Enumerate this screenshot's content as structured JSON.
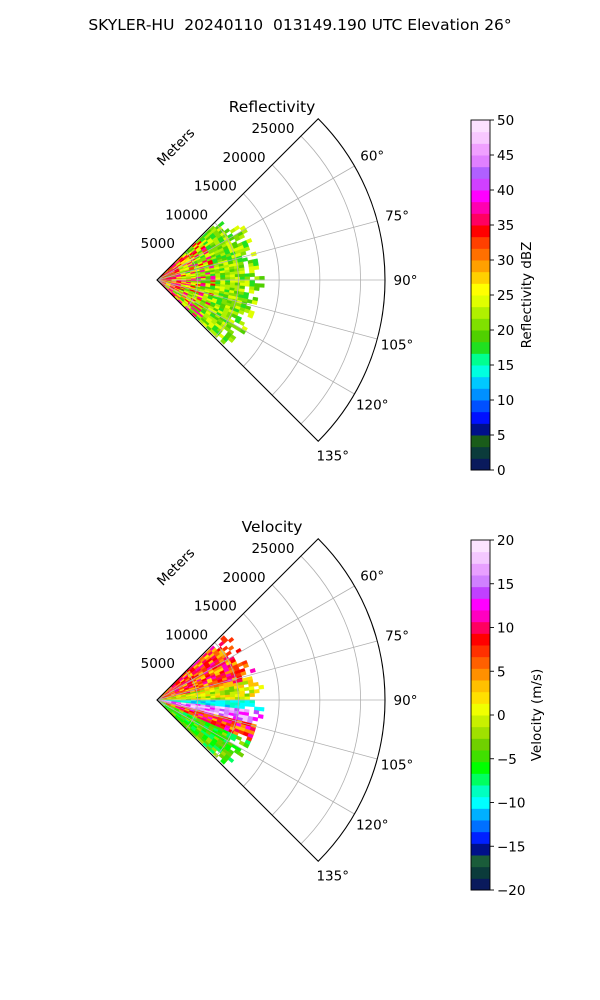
{
  "figure": {
    "title": "SKYLER-HU  20240110  013149.190 UTC Elevation 26°"
  },
  "chart_data": [
    {
      "type": "heatmap",
      "subtype": "polar-sector",
      "title": "Reflectivity",
      "radial_label": "Meters",
      "radial_ticks": [
        5000,
        10000,
        15000,
        20000,
        25000
      ],
      "radial_tick_labels": [
        "5000",
        "10000",
        "15000",
        "20000",
        "25000"
      ],
      "rlim": [
        0,
        28000
      ],
      "angle_ticks": [
        60,
        75,
        90,
        105,
        120,
        135
      ],
      "angle_tick_labels": [
        "60°",
        "75°",
        "90°",
        "105°",
        "120°",
        "135°"
      ],
      "angle_range_deg": [
        45,
        135
      ],
      "grid": true,
      "data_extent_m": 13500,
      "colorbar": {
        "label": "Reflectivity dBZ",
        "min": 0,
        "max": 50,
        "ticks": [
          0,
          5,
          10,
          15,
          20,
          25,
          30,
          35,
          40,
          45,
          50
        ],
        "tick_labels": [
          "0",
          "5",
          "10",
          "15",
          "20",
          "25",
          "30",
          "35",
          "40",
          "45",
          "50"
        ],
        "colors": [
          "#0a1a5c",
          "#0b3b3b",
          "#1a5c1a",
          "#00108a",
          "#0010ff",
          "#0050ff",
          "#0090ff",
          "#00c8ff",
          "#00ffe0",
          "#00ff90",
          "#20e020",
          "#50d000",
          "#80e000",
          "#b0f000",
          "#e0ff00",
          "#ffff00",
          "#ffd000",
          "#ffa000",
          "#ff7000",
          "#ff4000",
          "#ff0000",
          "#ff0060",
          "#ff00b0",
          "#ff00ff",
          "#d040ff",
          "#b060ff",
          "#e080ff",
          "#f0a0ff",
          "#f8c8ff",
          "#fce0ff"
        ]
      }
    },
    {
      "type": "heatmap",
      "subtype": "polar-sector",
      "title": "Velocity",
      "radial_label": "Meters",
      "radial_ticks": [
        5000,
        10000,
        15000,
        20000,
        25000
      ],
      "radial_tick_labels": [
        "5000",
        "10000",
        "15000",
        "20000",
        "25000"
      ],
      "rlim": [
        0,
        28000
      ],
      "angle_ticks": [
        60,
        75,
        90,
        105,
        120,
        135
      ],
      "angle_tick_labels": [
        "60°",
        "75°",
        "90°",
        "105°",
        "120°",
        "135°"
      ],
      "angle_range_deg": [
        45,
        135
      ],
      "grid": true,
      "data_extent_m": 13500,
      "colorbar": {
        "label": "Velocity (m/s)",
        "min": -20,
        "max": 20,
        "ticks": [
          -20,
          -15,
          -10,
          -5,
          0,
          5,
          10,
          15,
          20
        ],
        "tick_labels": [
          "−20",
          "−15",
          "−10",
          "−5",
          "0",
          "5",
          "10",
          "15",
          "20"
        ],
        "colors": [
          "#0a1a5c",
          "#0b3b3b",
          "#1a5c3a",
          "#00108a",
          "#0020ff",
          "#0070ff",
          "#00b0ff",
          "#00ffff",
          "#00ffc0",
          "#00ff60",
          "#00ff00",
          "#40e000",
          "#70d000",
          "#a0e000",
          "#c8f000",
          "#f0ff00",
          "#ffe000",
          "#ffc000",
          "#ff9000",
          "#ff6000",
          "#ff3000",
          "#ff0000",
          "#ff0060",
          "#ff00c0",
          "#ff00ff",
          "#c040ff",
          "#d080ff",
          "#e8a0ff",
          "#f4c8ff",
          "#fce4ff"
        ]
      }
    }
  ]
}
